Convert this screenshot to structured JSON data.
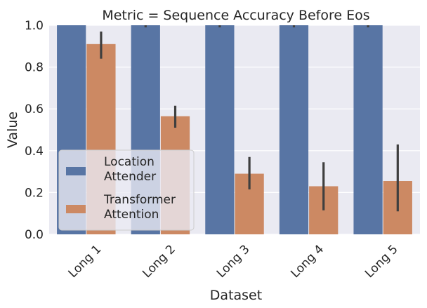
{
  "chart_data": {
    "type": "bar",
    "title": "Metric = Sequence Accuracy Before Eos",
    "xlabel": "Dataset",
    "ylabel": "Value",
    "ylim": [
      0,
      1.0
    ],
    "yticks": [
      "0.0",
      "0.2",
      "0.4",
      "0.6",
      "0.8",
      "1.0"
    ],
    "grid": true,
    "legend_placement": "lower-left",
    "categories": [
      "Long 1",
      "Long 2",
      "Long 3",
      "Long 4",
      "Long 5"
    ],
    "series": [
      {
        "name": "Location\nAttender",
        "color": "#5875a4",
        "values": [
          1.0,
          1.0,
          1.0,
          1.0,
          1.0
        ],
        "error_low": [
          1.0,
          0.99,
          0.99,
          0.99,
          0.99
        ],
        "error_high": [
          1.0,
          1.0,
          1.0,
          1.0,
          1.0
        ]
      },
      {
        "name": "Transformer\nAttention",
        "color": "#cc8963",
        "values": [
          0.91,
          0.565,
          0.29,
          0.23,
          0.255
        ],
        "error_low": [
          0.84,
          0.51,
          0.215,
          0.115,
          0.11
        ],
        "error_high": [
          0.97,
          0.615,
          0.37,
          0.345,
          0.43
        ]
      }
    ],
    "background_color": "#eaeaf2",
    "grid_color": "#ffffff",
    "errorbar_color": "#3f3f3f"
  }
}
